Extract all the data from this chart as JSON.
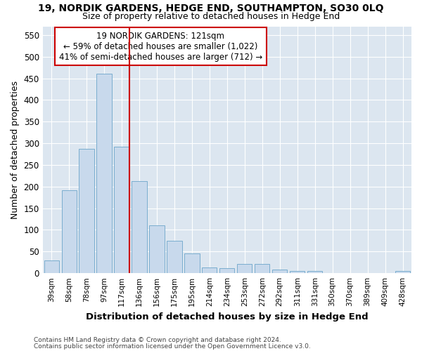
{
  "title": "19, NORDIK GARDENS, HEDGE END, SOUTHAMPTON, SO30 0LQ",
  "subtitle": "Size of property relative to detached houses in Hedge End",
  "xlabel": "Distribution of detached houses by size in Hedge End",
  "ylabel": "Number of detached properties",
  "categories": [
    "39sqm",
    "58sqm",
    "78sqm",
    "97sqm",
    "117sqm",
    "136sqm",
    "156sqm",
    "175sqm",
    "195sqm",
    "214sqm",
    "234sqm",
    "253sqm",
    "272sqm",
    "292sqm",
    "311sqm",
    "331sqm",
    "350sqm",
    "370sqm",
    "389sqm",
    "409sqm",
    "428sqm"
  ],
  "values": [
    30,
    192,
    287,
    460,
    292,
    213,
    110,
    75,
    46,
    14,
    12,
    22,
    22,
    9,
    5,
    5,
    0,
    0,
    0,
    0,
    5
  ],
  "bar_color": "#c8d9ec",
  "bar_edge_color": "#7aadcf",
  "vline_x_index": 4,
  "vline_color": "#cc0000",
  "annotation_text": "19 NORDIK GARDENS: 121sqm\n← 59% of detached houses are smaller (1,022)\n41% of semi-detached houses are larger (712) →",
  "annotation_box_color": "#ffffff",
  "annotation_box_edge_color": "#cc0000",
  "ylim": [
    0,
    570
  ],
  "yticks": [
    0,
    50,
    100,
    150,
    200,
    250,
    300,
    350,
    400,
    450,
    500,
    550
  ],
  "footer_line1": "Contains HM Land Registry data © Crown copyright and database right 2024.",
  "footer_line2": "Contains public sector information licensed under the Open Government Licence v3.0.",
  "figure_background_color": "#ffffff",
  "plot_background_color": "#dce6f0"
}
